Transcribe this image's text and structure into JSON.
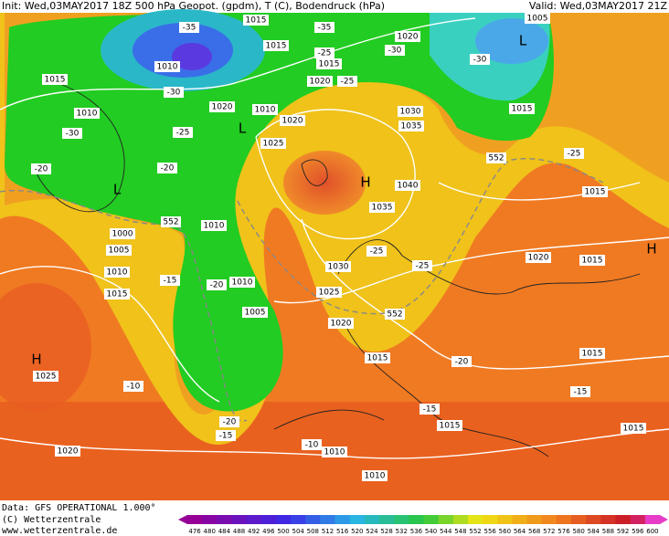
{
  "header": {
    "init": "Init: Wed,03MAY2017 18Z 500 hPa Geopot. (gpdm), T (C), Bodendruck (hPa)",
    "valid": "Valid: Wed,03MAY2017 21Z"
  },
  "map_labels": [
    "1015",
    "-35",
    "1015",
    "1010",
    "-35",
    "1020",
    "1005",
    "L",
    "-30",
    "-25",
    "-30",
    "1015",
    "1015",
    "-30",
    "-25",
    "1020",
    "1020",
    "1010",
    "1015",
    "1030",
    "1010",
    "1020",
    "-25",
    "L",
    "1035",
    "-30",
    "1025",
    "552",
    "-25",
    "-20",
    "-20",
    "H",
    "1040",
    "L",
    "1015",
    "1035",
    "552",
    "1010",
    "1000",
    "1005",
    "-25",
    "1020",
    "1015",
    "H",
    "1030",
    "-25",
    "1010",
    "-20",
    "1010",
    "1015",
    "-15",
    "1025",
    "552",
    "1005",
    "1020",
    "H",
    "1015",
    "-20",
    "1015",
    "1025",
    "-10",
    "-15",
    "-15",
    "-20",
    "1015",
    "1015",
    "-15",
    "-10",
    "1010",
    "1020",
    "1010"
  ],
  "footer": {
    "data": "Data: GFS OPERATIONAL 1.000°",
    "copyright": "(C) Wetterzentrale",
    "url": "www.wetterzentrale.de"
  },
  "color_scale": {
    "labels": [
      476,
      480,
      484,
      488,
      492,
      496,
      500,
      504,
      508,
      512,
      516,
      520,
      524,
      528,
      532,
      536,
      540,
      544,
      548,
      552,
      556,
      560,
      564,
      568,
      572,
      576,
      580,
      584,
      588,
      592,
      596,
      600
    ]
  }
}
